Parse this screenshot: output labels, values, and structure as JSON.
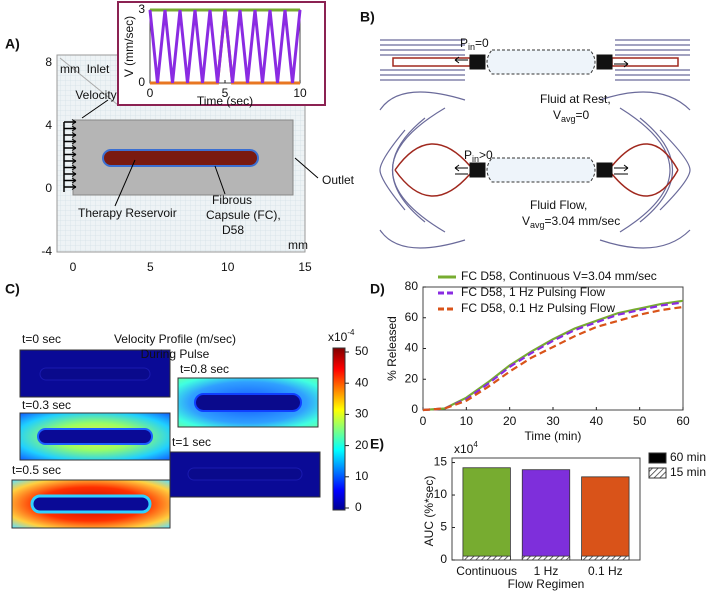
{
  "panel_labels": [
    "A)",
    "B)",
    "C)",
    "D)",
    "E)"
  ],
  "panel_a": {
    "xticks": [
      0,
      5,
      10,
      15
    ],
    "yticks": [
      8,
      4,
      0,
      -4
    ],
    "unit_y": "mm",
    "unit_x": "mm",
    "inlet": [
      "Inlet",
      "Velocity"
    ],
    "outlet": "Outlet",
    "reservoir": "Therapy Reservoir",
    "capsule": [
      "Fibrous",
      "Capsule (FC),",
      "D58"
    ]
  },
  "panel_b": {
    "rest_pressure": {
      "p": "P",
      "sub": "in",
      "rest": "=0"
    },
    "rest_caption": "Fluid at Rest,",
    "rest_velocity": {
      "p": "V",
      "sub": "avg",
      "rest": "=0"
    },
    "flow_pressure": {
      "p": "P",
      "sub": "in",
      "rest": ">0"
    },
    "flow_caption": "Fluid Flow,",
    "flow_velocity": {
      "p": "V",
      "sub": "avg",
      "rest": "=3.04 mm/sec"
    }
  },
  "panel_c": {
    "title": [
      "Velocity Profile (m/sec)",
      "During Pulse"
    ],
    "frames": [
      "t=0 sec",
      "t=0.3 sec",
      "t=0.5 sec",
      "t=0.8 sec",
      "t=1 sec"
    ],
    "colorbar": {
      "base": "x10",
      "exp": "-4",
      "ticks": [
        50,
        40,
        30,
        20,
        10,
        0
      ]
    }
  },
  "chart_data": [
    {
      "type": "line",
      "xlabel": "Time (sec)",
      "ylabel": "V (mm/sec)",
      "x": [
        0,
        0.5,
        1,
        1.5,
        2,
        2.5,
        3,
        3.5,
        4,
        4.5,
        5,
        5.5,
        6,
        6.5,
        7,
        7.5,
        8,
        8.5,
        9,
        9.5,
        10
      ],
      "series": [
        {
          "color": "#77ac30",
          "values": [
            3,
            3,
            3,
            3,
            3,
            3,
            3,
            3,
            3,
            3,
            3,
            3,
            3,
            3,
            3,
            3,
            3,
            3,
            3,
            3,
            3
          ]
        },
        {
          "color": "#e87722",
          "values": [
            0,
            0,
            0,
            0,
            0,
            0,
            0,
            0,
            0,
            0,
            3,
            0,
            0,
            0,
            0,
            0,
            0,
            0,
            0,
            0,
            0
          ]
        },
        {
          "color": "#8a2be2",
          "values": [
            3,
            0,
            3,
            0,
            3,
            0,
            3,
            0,
            3,
            0,
            3,
            0,
            3,
            0,
            3,
            0,
            3,
            0,
            3,
            0,
            3
          ]
        }
      ],
      "xlim": [
        0,
        10
      ],
      "ylim": [
        0,
        3
      ],
      "xticks": [
        0,
        5,
        10
      ],
      "yticks": [
        0,
        3
      ]
    },
    {
      "type": "line",
      "xlabel": "Time (min)",
      "ylabel": "% Released",
      "x": [
        0,
        5,
        10,
        15,
        20,
        25,
        30,
        35,
        40,
        45,
        50,
        55,
        60
      ],
      "series": [
        {
          "name": "FC D58, Continuous V=3.04 mm/sec",
          "color": "#77ac30",
          "line_style": "solid",
          "values": [
            0,
            1,
            8,
            18,
            29,
            38,
            46,
            53,
            58,
            63,
            66,
            69,
            71
          ]
        },
        {
          "name": "FC D58, 1 Hz Pulsing Flow",
          "color": "#8a2be2",
          "line_style": "dashed",
          "values": [
            0,
            1,
            7,
            17,
            28,
            37,
            45,
            52,
            57,
            62,
            65,
            68,
            70
          ]
        },
        {
          "name": "FC D58, 0.1 Hz Pulsing Flow",
          "color": "#d95319",
          "line_style": "dashed",
          "values": [
            0,
            1,
            6,
            15,
            25,
            34,
            41,
            48,
            54,
            58,
            62,
            65,
            67
          ]
        }
      ],
      "xlim": [
        0,
        60
      ],
      "ylim": [
        0,
        80
      ],
      "xticks": [
        0,
        10,
        20,
        30,
        40,
        50,
        60
      ],
      "yticks": [
        0,
        20,
        40,
        60,
        80
      ],
      "legend": "top-left"
    },
    {
      "type": "bar",
      "xlabel": "Flow Regimen",
      "ylabel": "AUC (%*sec)",
      "y_scale": {
        "base": "x10",
        "exp": "4"
      },
      "categories": [
        "Continuous",
        "1 Hz",
        "0.1 Hz"
      ],
      "bar_colors": [
        "#77ac30",
        "#7e2fdb",
        "#d95319"
      ],
      "series": [
        {
          "name": "60 min",
          "color": "#000000",
          "values": [
            14.2,
            13.9,
            12.8
          ]
        },
        {
          "name": "15 min",
          "pattern": "hatch",
          "values": [
            0.6,
            0.6,
            0.6
          ]
        }
      ],
      "ylim": [
        0,
        15.7
      ],
      "yticks": [
        0,
        5,
        10,
        15
      ],
      "legend": "right"
    }
  ]
}
